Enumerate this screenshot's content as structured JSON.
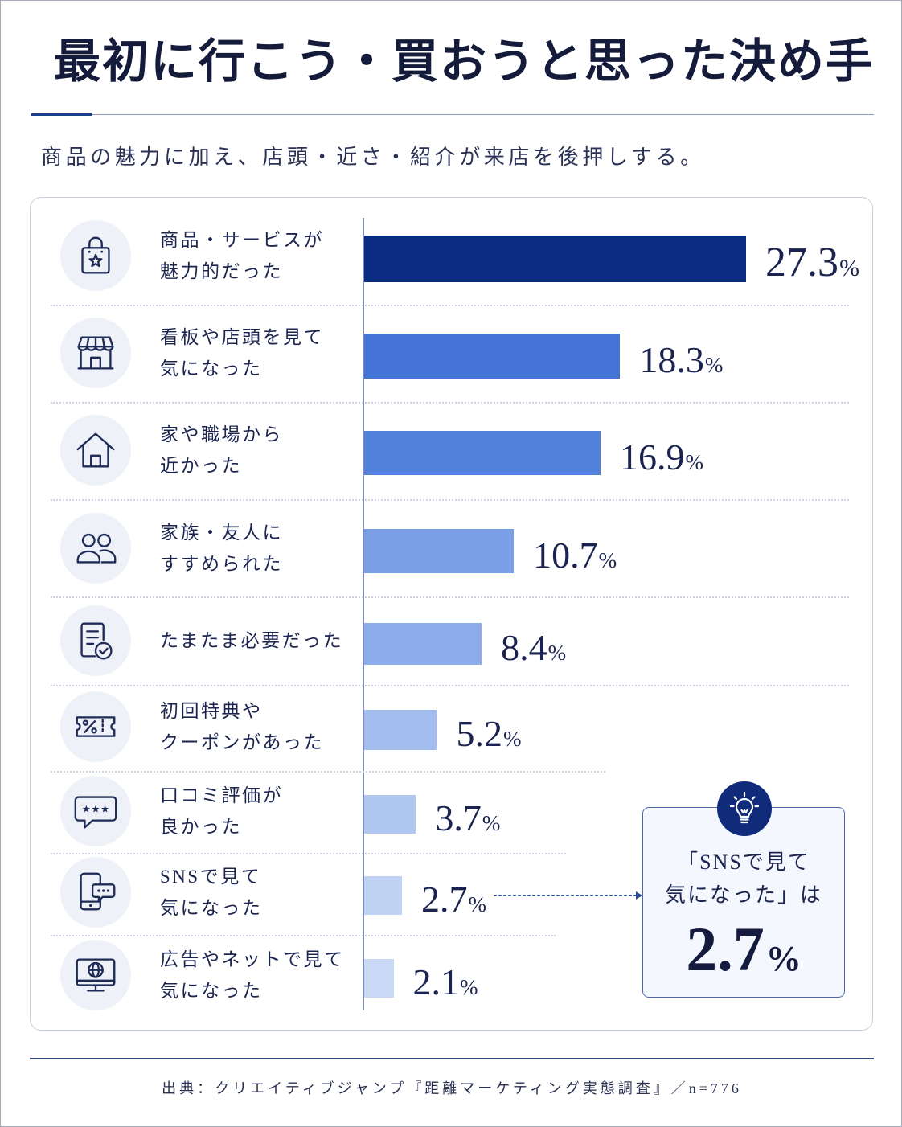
{
  "colors": {
    "title": "#151c3b",
    "accent": "#1b3c8f",
    "bars": [
      "#0b2a82",
      "#4474d6",
      "#5181da",
      "#7a9fe6",
      "#8dadea",
      "#a2bdee",
      "#b0c8f0",
      "#bfd2f3",
      "#c9d9f5"
    ],
    "callout_badge": "#0f2b7a"
  },
  "icons": [
    "shopping-bag-star-icon",
    "storefront-icon",
    "house-icon",
    "users-icon",
    "document-check-icon",
    "coupon-percent-icon",
    "review-bubble-icon",
    "smartphone-chat-icon",
    "monitor-globe-icon"
  ],
  "chart_data": {
    "type": "bar",
    "horizontal": true,
    "grid": false,
    "title": "最初に行こう・買おうと思った決め手",
    "subtitle": "商品の魅力に加え、店頭・近さ・紹介が来店を後押しする。",
    "categories": [
      "商品・サービスが\n魅力的だった",
      "看板や店頭を見て\n気になった",
      "家や職場から\n近かった",
      "家族・友人に\nすすめられた",
      "たまたま必要だった",
      "初回特典や\nクーポンがあった",
      "口コミ評価が\n良かった",
      "SNSで見て\n気になった",
      "広告やネットで見て\n気になった"
    ],
    "values": [
      27.3,
      18.3,
      16.9,
      10.7,
      8.4,
      5.2,
      3.7,
      2.7,
      2.1
    ],
    "unit": "%",
    "source": "出典：クリエイティブジャンプ『距離マーケティング実態調査』／n=776"
  },
  "callout": {
    "icon": "lightbulb-icon",
    "line1": "「SNSで見て",
    "line2": "気になった」は",
    "value": "2.7",
    "unit": "%"
  }
}
